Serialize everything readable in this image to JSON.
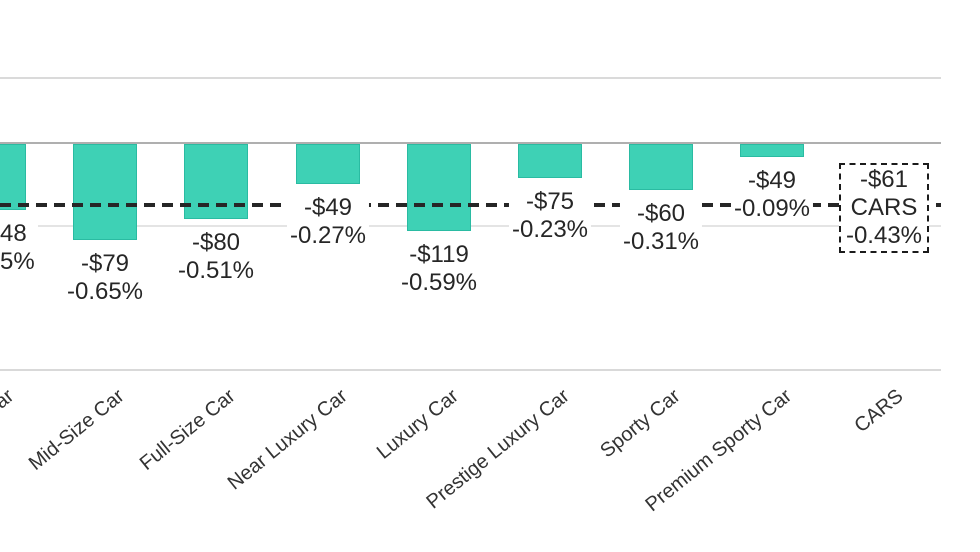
{
  "chart_data": {
    "type": "bar",
    "title": "",
    "xlabel": "",
    "ylabel": "",
    "legend": "none",
    "grid": "horizontal-light",
    "bars_direction": "downward-from-zero-axis",
    "value_encoding": "percent",
    "items": [
      {
        "category_partial": "Car",
        "dollar_label": "48",
        "percent_label": "5%",
        "percent_value": -0.45,
        "clipped": true
      },
      {
        "category": "Mid-Size Car",
        "dollar_label": "-$79",
        "percent_label": "-0.65%",
        "percent_value": -0.65
      },
      {
        "category": "Full-Size Car",
        "dollar_label": "-$80",
        "percent_label": "-0.51%",
        "percent_value": -0.51
      },
      {
        "category": "Near Luxury Car",
        "dollar_label": "-$49",
        "percent_label": "-0.27%",
        "percent_value": -0.27
      },
      {
        "category": "Luxury Car",
        "dollar_label": "-$119",
        "percent_label": "-0.59%",
        "percent_value": -0.59
      },
      {
        "category": "Prestige Luxury Car",
        "dollar_label": "-$75",
        "percent_label": "-0.23%",
        "percent_value": -0.23
      },
      {
        "category": "Sporty Car",
        "dollar_label": "-$60",
        "percent_label": "-0.31%",
        "percent_value": -0.31
      },
      {
        "category": "Premium Sporty Car",
        "dollar_label": "-$49",
        "percent_label": "-0.09%",
        "percent_value": -0.09
      },
      {
        "category": "CARS",
        "dollar_label": "-$61",
        "percent_label": "-0.43%",
        "percent_value": -0.43,
        "boxed": true
      }
    ],
    "average_line": {
      "style": "dashed",
      "percent_value": -0.43,
      "belongs_to": "CARS"
    },
    "colors": {
      "bar_fill": "#3ED1B5",
      "bar_border": "#2ABBA2",
      "dashed_line": "#262626",
      "gridline_light": "#DADADA",
      "gridline_faint": "#E4E4E4",
      "zero_axis": "#AFAFAF",
      "bottom_axis": "#D9D9D9",
      "value_text": "#262626",
      "category_text": "#333333"
    }
  }
}
